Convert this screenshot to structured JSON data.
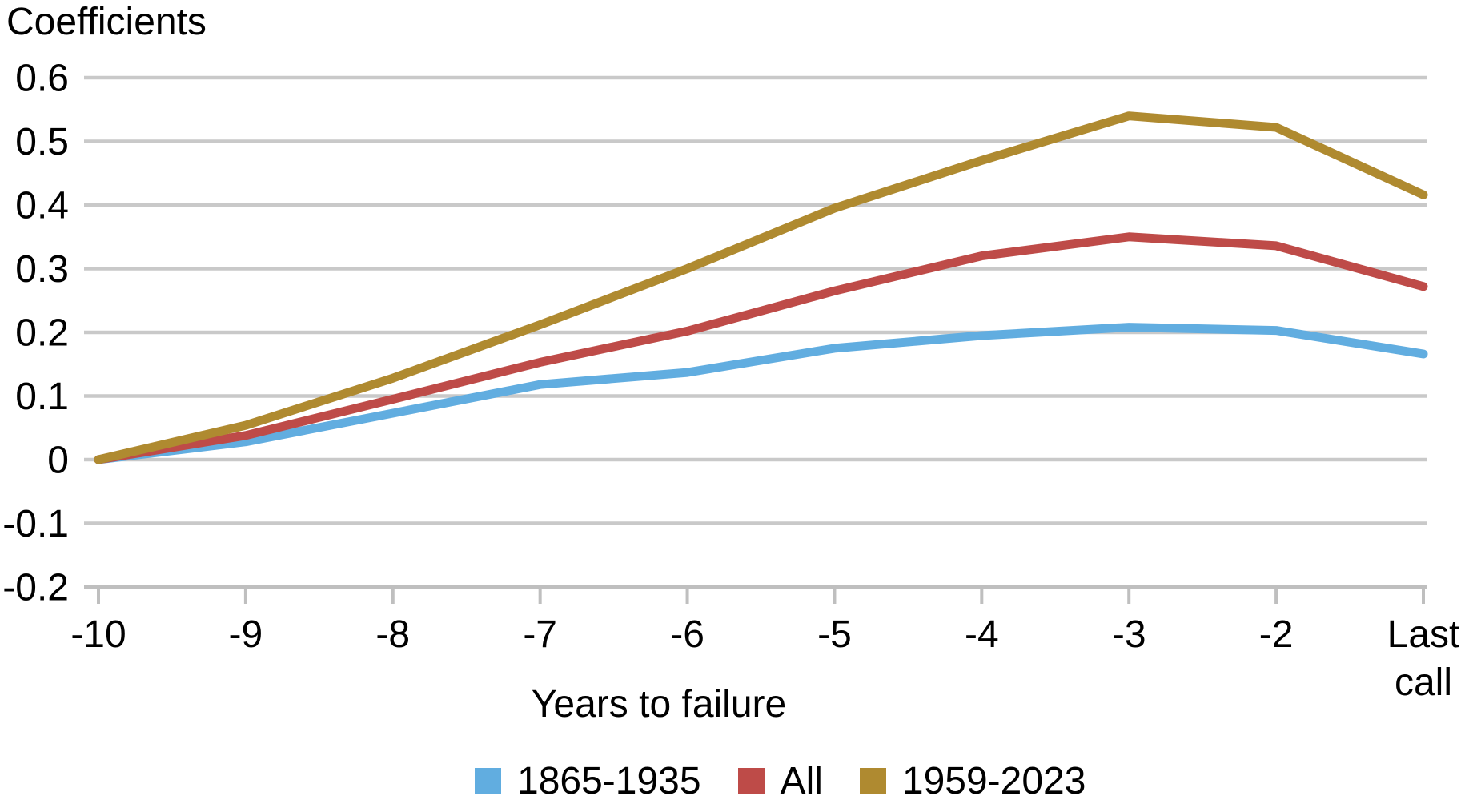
{
  "title": "Coefficients",
  "x_axis_label": "Years to failure",
  "chart_data": {
    "type": "line",
    "title": "Coefficients",
    "xlabel": "Years to failure",
    "ylabel": "Coefficients",
    "categories": [
      "-10",
      "-9",
      "-8",
      "-7",
      "-6",
      "-5",
      "-4",
      "-3",
      "-2",
      "Last call"
    ],
    "series": [
      {
        "name": "1865-1935",
        "color": "#61ADE0",
        "values": [
          0,
          0.028,
          0.073,
          0.118,
          0.137,
          0.175,
          0.195,
          0.208,
          0.203,
          0.166
        ]
      },
      {
        "name": "All",
        "color": "#BE4B48",
        "values": [
          0,
          0.038,
          0.095,
          0.153,
          0.202,
          0.265,
          0.32,
          0.35,
          0.336,
          0.272
        ]
      },
      {
        "name": "1959-2023",
        "color": "#AF8A30",
        "values": [
          0,
          0.054,
          0.128,
          0.212,
          0.3,
          0.395,
          0.47,
          0.54,
          0.522,
          0.416
        ]
      }
    ],
    "ylim": [
      -0.2,
      0.6
    ],
    "ytick_step": 0.1,
    "ytick_labels": [
      "0.6",
      "0.5",
      "0.4",
      "0.3",
      "0.2",
      "0.1",
      "0",
      "-0.1",
      "-0.2"
    ],
    "grid": true,
    "legend_position": "bottom"
  },
  "colors": {
    "gridline": "#C9C9C9",
    "axis": "#BFBFBF",
    "text": "#000000",
    "background": "#FFFFFF"
  }
}
